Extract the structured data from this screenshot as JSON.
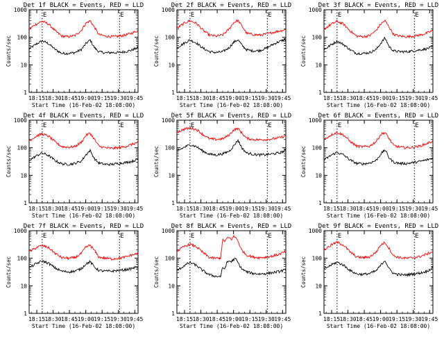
{
  "common": {
    "ylabel": "Counts/sec",
    "xlabel": "Start Time (16-Feb-02 18:08:00)",
    "y_ticks": [
      "1",
      "10",
      "100",
      "1000"
    ],
    "x_ticks": [
      "18:15",
      "18:30",
      "18:45",
      "19:00",
      "19:15",
      "19:30",
      "19:45"
    ],
    "marker_labels": [
      "E",
      "E"
    ],
    "colors": {
      "events": "#000000",
      "lld": "#ff0000"
    }
  },
  "chart_data": [
    {
      "type": "line",
      "title": "Det 1f BLACK = Events, RED = LLD",
      "yscale": "log",
      "ylim": [
        1,
        1000
      ],
      "x_minutes": [
        0,
        100
      ],
      "markers_min": [
        12,
        83
      ],
      "series": [
        {
          "name": "BLACK = Events",
          "color": "#000000",
          "x": [
            0,
            7,
            12,
            18,
            24,
            30,
            36,
            42,
            48,
            52,
            56,
            60,
            64,
            70,
            76,
            82,
            88,
            94,
            100
          ],
          "values": [
            38,
            58,
            75,
            58,
            36,
            26,
            26,
            28,
            36,
            58,
            80,
            42,
            30,
            27,
            28,
            28,
            30,
            34,
            42
          ]
        },
        {
          "name": "RED = LLD",
          "color": "#ff0000",
          "x": [
            0,
            7,
            12,
            18,
            24,
            30,
            36,
            42,
            48,
            52,
            56,
            60,
            64,
            70,
            76,
            82,
            88,
            94,
            100
          ],
          "values": [
            200,
            310,
            380,
            300,
            170,
            110,
            105,
            115,
            180,
            320,
            400,
            230,
            125,
            110,
            105,
            108,
            120,
            140,
            175
          ]
        }
      ]
    },
    {
      "type": "line",
      "title": "Det 2f BLACK = Events, RED = LLD",
      "yscale": "log",
      "ylim": [
        1,
        1000
      ],
      "x_minutes": [
        0,
        100
      ],
      "markers_min": [
        12,
        83
      ],
      "series": [
        {
          "name": "BLACK = Events",
          "color": "#000000",
          "x": [
            0,
            7,
            12,
            18,
            24,
            30,
            36,
            42,
            48,
            52,
            56,
            60,
            64,
            70,
            76,
            82,
            88,
            94,
            100
          ],
          "values": [
            42,
            62,
            80,
            62,
            40,
            30,
            28,
            30,
            42,
            65,
            82,
            50,
            35,
            32,
            33,
            40,
            55,
            70,
            85
          ]
        },
        {
          "name": "RED = LLD",
          "color": "#ff0000",
          "x": [
            0,
            7,
            12,
            18,
            24,
            30,
            36,
            42,
            48,
            52,
            56,
            60,
            64,
            70,
            76,
            82,
            88,
            94,
            100
          ],
          "values": [
            210,
            330,
            400,
            320,
            180,
            120,
            110,
            120,
            200,
            340,
            410,
            250,
            140,
            125,
            120,
            130,
            150,
            170,
            190
          ]
        }
      ]
    },
    {
      "type": "line",
      "title": "Det 3f BLACK = Events, RED = LLD",
      "yscale": "log",
      "ylim": [
        1,
        1000
      ],
      "x_minutes": [
        0,
        100
      ],
      "markers_min": [
        12,
        83
      ],
      "series": [
        {
          "name": "BLACK = Events",
          "color": "#000000",
          "x": [
            0,
            7,
            12,
            18,
            24,
            30,
            36,
            42,
            48,
            52,
            56,
            60,
            64,
            70,
            76,
            82,
            88,
            94,
            100
          ],
          "values": [
            35,
            55,
            72,
            55,
            35,
            26,
            26,
            28,
            36,
            60,
            95,
            45,
            32,
            30,
            30,
            32,
            35,
            38,
            45
          ]
        },
        {
          "name": "RED = LLD",
          "color": "#ff0000",
          "x": [
            0,
            7,
            12,
            18,
            24,
            30,
            36,
            42,
            48,
            52,
            56,
            60,
            64,
            70,
            76,
            82,
            88,
            94,
            100
          ],
          "values": [
            200,
            300,
            380,
            300,
            170,
            110,
            105,
            115,
            180,
            300,
            400,
            230,
            125,
            110,
            105,
            110,
            120,
            140,
            175
          ]
        }
      ]
    },
    {
      "type": "line",
      "title": "Det 4f BLACK = Events, RED = LLD",
      "yscale": "log",
      "ylim": [
        1,
        1000
      ],
      "x_minutes": [
        0,
        100
      ],
      "markers_min": [
        12,
        83
      ],
      "series": [
        {
          "name": "BLACK = Events",
          "color": "#000000",
          "x": [
            0,
            7,
            12,
            18,
            24,
            30,
            36,
            42,
            48,
            52,
            56,
            60,
            64,
            70,
            76,
            82,
            88,
            94,
            100
          ],
          "values": [
            35,
            52,
            65,
            52,
            34,
            26,
            25,
            27,
            33,
            55,
            80,
            40,
            28,
            25,
            25,
            27,
            29,
            32,
            38
          ]
        },
        {
          "name": "RED = LLD",
          "color": "#ff0000",
          "x": [
            0,
            7,
            12,
            18,
            24,
            30,
            36,
            42,
            48,
            52,
            56,
            60,
            64,
            70,
            76,
            82,
            88,
            94,
            100
          ],
          "values": [
            180,
            270,
            320,
            260,
            160,
            110,
            105,
            110,
            160,
            280,
            340,
            200,
            115,
            100,
            95,
            100,
            110,
            130,
            160
          ]
        }
      ]
    },
    {
      "type": "line",
      "title": "Det 5f BLACK = Events, RED = LLD",
      "yscale": "log",
      "ylim": [
        1,
        1000
      ],
      "x_minutes": [
        0,
        100
      ],
      "markers_min": [
        12,
        83
      ],
      "series": [
        {
          "name": "BLACK = Events",
          "color": "#000000",
          "x": [
            0,
            7,
            12,
            18,
            24,
            30,
            36,
            42,
            48,
            52,
            56,
            60,
            64,
            70,
            76,
            82,
            88,
            94,
            100
          ],
          "values": [
            75,
            105,
            130,
            110,
            75,
            58,
            55,
            60,
            75,
            115,
            190,
            95,
            65,
            58,
            55,
            56,
            60,
            65,
            80
          ]
        },
        {
          "name": "RED = LLD",
          "color": "#ff0000",
          "x": [
            0,
            7,
            12,
            18,
            24,
            30,
            36,
            42,
            48,
            52,
            56,
            60,
            64,
            70,
            76,
            82,
            88,
            94,
            100
          ],
          "values": [
            360,
            480,
            520,
            460,
            300,
            210,
            200,
            210,
            290,
            440,
            500,
            330,
            220,
            200,
            195,
            200,
            210,
            230,
            270
          ]
        }
      ]
    },
    {
      "type": "line",
      "title": "Det 6f BLACK = Events, RED = LLD",
      "yscale": "log",
      "ylim": [
        1,
        1000
      ],
      "x_minutes": [
        0,
        100
      ],
      "markers_min": [
        12,
        83
      ],
      "series": [
        {
          "name": "BLACK = Events",
          "color": "#000000",
          "x": [
            0,
            7,
            12,
            18,
            24,
            30,
            36,
            42,
            48,
            52,
            56,
            60,
            64,
            70,
            76,
            82,
            88,
            94,
            100
          ],
          "values": [
            36,
            55,
            68,
            55,
            36,
            27,
            26,
            28,
            35,
            58,
            85,
            42,
            30,
            27,
            27,
            29,
            32,
            36,
            42
          ]
        },
        {
          "name": "RED = LLD",
          "color": "#ff0000",
          "x": [
            0,
            7,
            12,
            18,
            24,
            30,
            36,
            42,
            48,
            52,
            56,
            60,
            64,
            70,
            76,
            82,
            88,
            94,
            100
          ],
          "values": [
            200,
            300,
            360,
            290,
            170,
            115,
            108,
            115,
            170,
            300,
            360,
            210,
            120,
            105,
            100,
            105,
            115,
            140,
            175
          ]
        }
      ]
    },
    {
      "type": "line",
      "title": "Det 7f BLACK = Events, RED = LLD",
      "yscale": "log",
      "ylim": [
        1,
        1000
      ],
      "x_minutes": [
        0,
        100
      ],
      "markers_min": [
        12,
        83
      ],
      "series": [
        {
          "name": "BLACK = Events",
          "color": "#000000",
          "x": [
            0,
            7,
            12,
            18,
            24,
            30,
            36,
            42,
            48,
            52,
            56,
            60,
            64,
            70,
            76,
            82,
            88,
            94,
            100
          ],
          "values": [
            45,
            65,
            80,
            65,
            44,
            34,
            32,
            34,
            42,
            62,
            75,
            48,
            36,
            34,
            34,
            36,
            38,
            42,
            50
          ]
        },
        {
          "name": "RED = LLD",
          "color": "#ff0000",
          "x": [
            0,
            7,
            12,
            18,
            24,
            30,
            36,
            42,
            48,
            52,
            56,
            60,
            64,
            70,
            76,
            82,
            88,
            94,
            100
          ],
          "values": [
            170,
            250,
            290,
            240,
            150,
            105,
            100,
            105,
            150,
            250,
            300,
            190,
            110,
            100,
            95,
            100,
            110,
            130,
            150
          ]
        }
      ]
    },
    {
      "type": "line",
      "title": "Det 8f BLACK = Events, RED = LLD",
      "yscale": "log",
      "ylim": [
        1,
        1000
      ],
      "x_minutes": [
        0,
        100
      ],
      "markers_min": [
        12,
        83
      ],
      "series": [
        {
          "name": "BLACK = Events",
          "color": "#000000",
          "x": [
            0,
            7,
            12,
            18,
            24,
            30,
            36,
            40,
            42,
            44,
            46,
            48,
            50,
            52,
            54,
            56,
            58,
            60,
            64,
            70,
            76,
            82,
            88,
            94,
            100
          ],
          "values": [
            35,
            55,
            70,
            55,
            35,
            25,
            22,
            22,
            45,
            42,
            70,
            80,
            75,
            90,
            95,
            70,
            50,
            40,
            32,
            28,
            27,
            28,
            30,
            33,
            38
          ]
        },
        {
          "name": "RED = LLD",
          "color": "#ff0000",
          "x": [
            0,
            7,
            12,
            18,
            24,
            30,
            36,
            40,
            42,
            44,
            46,
            48,
            50,
            52,
            54,
            56,
            58,
            60,
            64,
            70,
            76,
            82,
            88,
            94,
            100
          ],
          "values": [
            180,
            270,
            320,
            260,
            160,
            105,
            100,
            100,
            450,
            420,
            520,
            560,
            480,
            620,
            560,
            450,
            250,
            190,
            130,
            110,
            105,
            110,
            120,
            140,
            175
          ]
        }
      ]
    },
    {
      "type": "line",
      "title": "Det 9f BLACK = Events, RED = LLD",
      "yscale": "log",
      "ylim": [
        1,
        1000
      ],
      "x_minutes": [
        0,
        100
      ],
      "markers_min": [
        12,
        83
      ],
      "series": [
        {
          "name": "BLACK = Events",
          "color": "#000000",
          "x": [
            0,
            7,
            12,
            18,
            24,
            30,
            36,
            42,
            48,
            52,
            56,
            60,
            64,
            70,
            76,
            82,
            88,
            94,
            100
          ],
          "values": [
            40,
            58,
            72,
            56,
            36,
            27,
            26,
            28,
            35,
            55,
            85,
            40,
            28,
            25,
            25,
            27,
            29,
            33,
            45
          ]
        },
        {
          "name": "RED = LLD",
          "color": "#ff0000",
          "x": [
            0,
            7,
            12,
            18,
            24,
            30,
            36,
            42,
            48,
            52,
            56,
            60,
            64,
            70,
            76,
            82,
            88,
            94,
            100
          ],
          "values": [
            200,
            310,
            380,
            300,
            170,
            112,
            105,
            112,
            170,
            300,
            380,
            220,
            120,
            105,
            100,
            105,
            115,
            140,
            175
          ]
        }
      ]
    }
  ]
}
